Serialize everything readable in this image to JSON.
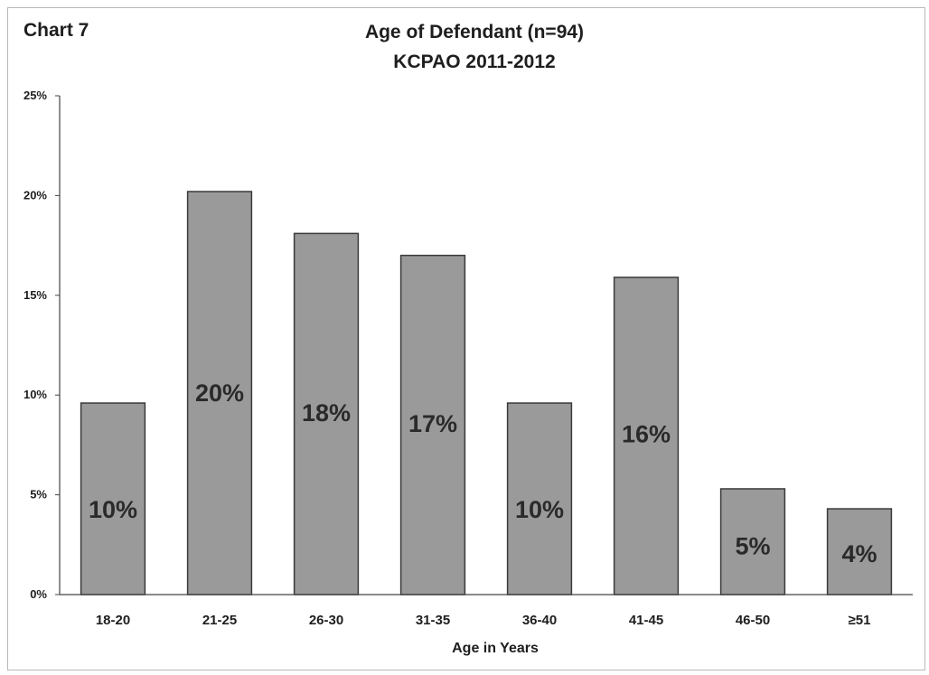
{
  "chart_label": "Chart 7",
  "chart_data": {
    "type": "bar",
    "title": "Age of Defendant (n=94)",
    "subtitle": "KCPAO 2011-2012",
    "categories": [
      "18-20",
      "21-25",
      "26-30",
      "31-35",
      "36-40",
      "41-45",
      "46-50",
      "≥51"
    ],
    "values": [
      9.6,
      20.2,
      18.1,
      17.0,
      9.6,
      15.9,
      5.3,
      4.3
    ],
    "data_labels": [
      "10%",
      "20%",
      "18%",
      "17%",
      "10%",
      "16%",
      "5%",
      "4%"
    ],
    "xlabel": "Age in Years",
    "ylabel": "",
    "ylim": [
      0,
      25
    ],
    "yticks": [
      0,
      5,
      10,
      15,
      20,
      25
    ],
    "ytick_labels": [
      "0%",
      "5%",
      "10%",
      "15%",
      "20%",
      "25%"
    ],
    "grid": false,
    "bar_color": "#9a9a9a",
    "bar_edge_color": "#3a3a3a"
  }
}
